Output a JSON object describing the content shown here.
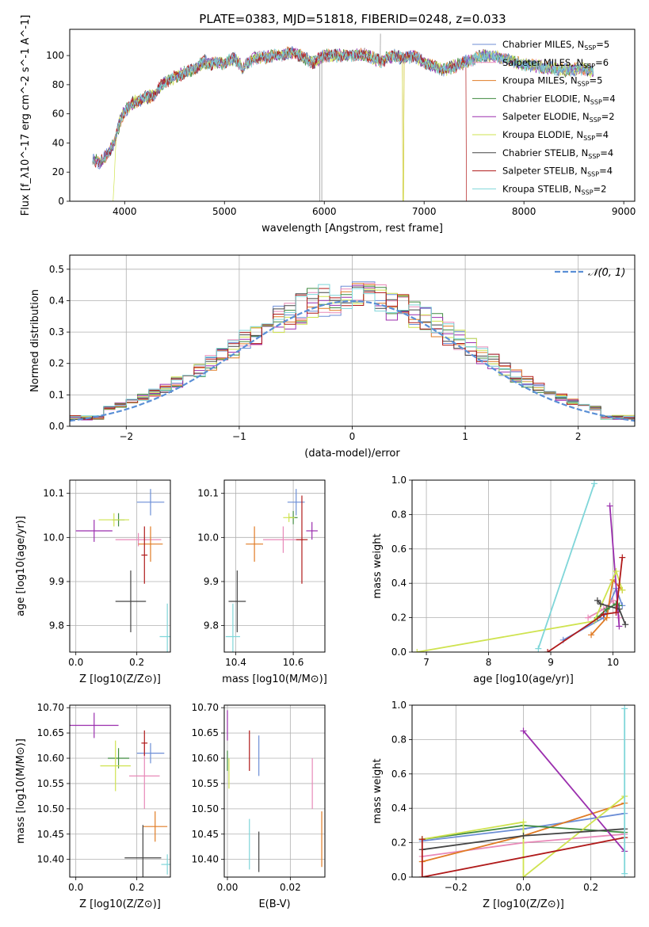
{
  "title": "PLATE=0383, MJD=51818, FIBERID=0248, z=0.033",
  "colors": {
    "Chabrier MILES": "#6c8ed6",
    "Salpeter MILES": "#e889b8",
    "Kroupa MILES": "#e07b24",
    "Chabrier ELODIE": "#3f8a3f",
    "Salpeter ELODIE": "#9b2fae",
    "Kroupa ELODIE": "#cfe34f",
    "Chabrier STELIB": "#444444",
    "Salpeter STELIB": "#b01a1a",
    "Kroupa STELIB": "#7fd6d9"
  },
  "chart_data": [
    {
      "type": "line",
      "title": "PLATE=0383, MJD=51818, FIBERID=0248, z=0.033",
      "xlabel": "wavelength [Angstrom, rest frame]",
      "ylabel": "Flux [f_λ10^-17 erg cm^-2 s^-1 A^-1]",
      "xlim": [
        3450,
        9110
      ],
      "ylim": [
        0,
        118
      ],
      "xticks": [
        4000,
        5000,
        6000,
        7000,
        8000,
        9000
      ],
      "yticks": [
        0,
        20,
        40,
        60,
        80,
        100
      ],
      "grid": false,
      "legend": "upper-right",
      "spectrum_x": [
        3680,
        3750,
        3820,
        3900,
        3950,
        4000,
        4100,
        4200,
        4300,
        4400,
        4500,
        4600,
        4700,
        4800,
        4861,
        4900,
        5000,
        5100,
        5175,
        5300,
        5500,
        5700,
        5890,
        6000,
        6200,
        6400,
        6563,
        6700,
        6800,
        6900,
        7000,
        7200,
        7400,
        7600,
        7800,
        8000,
        8200,
        8400,
        8600,
        8700
      ],
      "spectrum_y": [
        30,
        26,
        32,
        40,
        54,
        62,
        68,
        71,
        73,
        82,
        85,
        88,
        91,
        96,
        94,
        95,
        95,
        98,
        92,
        98,
        100,
        102,
        95,
        100,
        100,
        101,
        96,
        100,
        98,
        100,
        95,
        90,
        95,
        100,
        98,
        94,
        92,
        90,
        91,
        89
      ],
      "series": [
        {
          "name": "Chabrier MILES, N_SSP=5"
        },
        {
          "name": "Salpeter MILES, N_SSP=6"
        },
        {
          "name": "Kroupa MILES, N_SSP=5"
        },
        {
          "name": "Chabrier ELODIE, N_SSP=4"
        },
        {
          "name": "Salpeter ELODIE, N_SSP=2"
        },
        {
          "name": "Kroupa ELODIE, N_SSP=4"
        },
        {
          "name": "Chabrier STELIB, N_SSP=4"
        },
        {
          "name": "Salpeter STELIB, N_SSP=4"
        },
        {
          "name": "Kroupa STELIB, N_SSP=2"
        }
      ]
    },
    {
      "type": "histogram",
      "xlabel": "(data-model)/error",
      "ylabel": "Normed distribution",
      "xlim": [
        -2.5,
        2.5
      ],
      "ylim": [
        0,
        0.545
      ],
      "xticks": [
        -2,
        -1,
        0,
        1,
        2
      ],
      "yticks": [
        0.0,
        0.1,
        0.2,
        0.3,
        0.4,
        0.5
      ],
      "grid": true,
      "legend": "upper-right",
      "reference": {
        "name": "N(0,1)",
        "mean": 0,
        "sigma": 1
      },
      "bin_width": 0.1,
      "series_order": [
        "Chabrier MILES",
        "Salpeter MILES",
        "Kroupa MILES",
        "Chabrier ELODIE",
        "Salpeter ELODIE",
        "Kroupa ELODIE",
        "Chabrier STELIB",
        "Salpeter STELIB",
        "Kroupa STELIB"
      ]
    },
    {
      "type": "errorbar",
      "xlabel": "Z [log10(Z/Z⊙)]",
      "ylabel": "age  [log10(age/yr)]",
      "xlim": [
        -0.02,
        0.31
      ],
      "ylim": [
        9.74,
        10.13
      ],
      "xticks": [
        0.0,
        0.2
      ],
      "yticks": [
        9.8,
        9.9,
        10.0,
        10.1
      ],
      "grid": true,
      "points": [
        {
          "model": "Chabrier MILES",
          "x": 0.245,
          "y": 10.08,
          "xerr": 0.045,
          "yerr": 0.03
        },
        {
          "model": "Salpeter MILES",
          "x": 0.205,
          "y": 9.995,
          "xerr": 0.075,
          "yerr": 0.015
        },
        {
          "model": "Kroupa MILES",
          "x": 0.245,
          "y": 9.985,
          "xerr": 0.04,
          "yerr": 0.04
        },
        {
          "model": "Chabrier ELODIE",
          "x": 0.14,
          "y": 10.04,
          "xerr": 0.02,
          "yerr": 0.015
        },
        {
          "model": "Salpeter ELODIE",
          "x": 0.06,
          "y": 10.015,
          "xerr": 0.06,
          "yerr": 0.025
        },
        {
          "model": "Kroupa ELODIE",
          "x": 0.125,
          "y": 10.04,
          "xerr": 0.05,
          "yerr": 0.015
        },
        {
          "model": "Chabrier STELIB",
          "x": 0.18,
          "y": 9.855,
          "xerr": 0.05,
          "yerr": 0.07
        },
        {
          "model": "Salpeter STELIB",
          "x": 0.225,
          "y": 9.96,
          "xerr": 0.01,
          "yerr": 0.065
        },
        {
          "model": "Kroupa STELIB",
          "x": 0.3,
          "y": 9.775,
          "xerr": 0.025,
          "yerr": 0.075
        }
      ]
    },
    {
      "type": "errorbar",
      "xlabel": "mass [log10(M/M⊙)]",
      "ylabel": "",
      "xlim": [
        10.36,
        10.71
      ],
      "ylim": [
        9.74,
        10.13
      ],
      "xticks": [
        10.4,
        10.6
      ],
      "yticks": [
        9.8,
        9.9,
        10.0,
        10.1
      ],
      "grid": true,
      "points": [
        {
          "model": "Chabrier MILES",
          "x": 10.61,
          "y": 10.08,
          "xerr": 0.03,
          "yerr": 0.03
        },
        {
          "model": "Salpeter MILES",
          "x": 10.565,
          "y": 9.995,
          "xerr": 0.07,
          "yerr": 0.03
        },
        {
          "model": "Kroupa MILES",
          "x": 10.465,
          "y": 9.985,
          "xerr": 0.03,
          "yerr": 0.04
        },
        {
          "model": "Chabrier ELODIE",
          "x": 10.6,
          "y": 10.045,
          "xerr": 0.015,
          "yerr": 0.015
        },
        {
          "model": "Salpeter ELODIE",
          "x": 10.665,
          "y": 10.015,
          "xerr": 0.02,
          "yerr": 0.02
        },
        {
          "model": "Kroupa ELODIE",
          "x": 10.585,
          "y": 10.045,
          "xerr": 0.02,
          "yerr": 0.01
        },
        {
          "model": "Chabrier STELIB",
          "x": 10.405,
          "y": 9.855,
          "xerr": 0.03,
          "yerr": 0.07
        },
        {
          "model": "Salpeter STELIB",
          "x": 10.63,
          "y": 9.995,
          "xerr": 0.02,
          "yerr": 0.1
        },
        {
          "model": "Kroupa STELIB",
          "x": 10.39,
          "y": 9.775,
          "xerr": 0.025,
          "yerr": 0.075
        }
      ]
    },
    {
      "type": "line",
      "xlabel": "age  [log10(age/yr)]",
      "ylabel": "mass weight",
      "xlim": [
        6.77,
        10.35
      ],
      "ylim": [
        0,
        1.0
      ],
      "xticks": [
        7,
        8,
        9,
        10
      ],
      "yticks": [
        0.0,
        0.2,
        0.4,
        0.6,
        0.8,
        1.0
      ],
      "grid": true,
      "series": [
        {
          "model": "Chabrier MILES",
          "x": [
            9.2,
            9.85,
            10.05,
            10.15
          ],
          "y": [
            0.07,
            0.2,
            0.37,
            0.27
          ]
        },
        {
          "model": "Salpeter MILES",
          "x": [
            9.6,
            9.85,
            10.0,
            10.1
          ],
          "y": [
            0.2,
            0.25,
            0.3,
            0.2
          ]
        },
        {
          "model": "Kroupa MILES",
          "x": [
            9.65,
            9.9,
            10.0,
            10.15
          ],
          "y": [
            0.1,
            0.2,
            0.42,
            0.36
          ]
        },
        {
          "model": "Chabrier ELODIE",
          "x": [
            9.75,
            9.9,
            10.05,
            10.1
          ],
          "y": [
            0.2,
            0.25,
            0.28,
            0.27
          ]
        },
        {
          "model": "Salpeter ELODIE",
          "x": [
            9.95,
            10.1
          ],
          "y": [
            0.85,
            0.15
          ]
        },
        {
          "model": "Kroupa ELODIE",
          "x": [
            6.85,
            9.7,
            10.05,
            10.15
          ],
          "y": [
            0.0,
            0.18,
            0.47,
            0.36
          ]
        },
        {
          "model": "Chabrier STELIB",
          "x": [
            9.75,
            9.8,
            10.1,
            10.2
          ],
          "y": [
            0.3,
            0.28,
            0.25,
            0.16
          ]
        },
        {
          "model": "Salpeter STELIB",
          "x": [
            8.95,
            9.85,
            10.05,
            10.15
          ],
          "y": [
            0.0,
            0.22,
            0.23,
            0.55
          ]
        },
        {
          "model": "Kroupa STELIB",
          "x": [
            8.8,
            9.7
          ],
          "y": [
            0.02,
            0.98
          ]
        }
      ]
    },
    {
      "type": "errorbar",
      "xlabel": "Z [log10(Z/Z⊙)]",
      "ylabel": "mass [log10(M/M⊙)]",
      "xlim": [
        -0.02,
        0.31
      ],
      "ylim": [
        10.365,
        10.705
      ],
      "xticks": [
        0.0,
        0.2
      ],
      "yticks": [
        10.4,
        10.45,
        10.5,
        10.55,
        10.6,
        10.65,
        10.7
      ],
      "grid": true,
      "points": [
        {
          "model": "Chabrier MILES",
          "x": 0.245,
          "y": 10.61,
          "xerr": 0.045,
          "yerr": 0.02
        },
        {
          "model": "Salpeter MILES",
          "x": 0.225,
          "y": 10.565,
          "xerr": 0.05,
          "yerr": 0.065
        },
        {
          "model": "Kroupa MILES",
          "x": 0.26,
          "y": 10.465,
          "xerr": 0.04,
          "yerr": 0.03
        },
        {
          "model": "Chabrier ELODIE",
          "x": 0.14,
          "y": 10.6,
          "xerr": 0.035,
          "yerr": 0.02
        },
        {
          "model": "Salpeter ELODIE",
          "x": 0.06,
          "y": 10.665,
          "xerr": 0.08,
          "yerr": 0.025
        },
        {
          "model": "Kroupa ELODIE",
          "x": 0.13,
          "y": 10.585,
          "xerr": 0.05,
          "yerr": 0.05
        },
        {
          "model": "Chabrier STELIB",
          "x": 0.22,
          "y": 10.403,
          "xerr": 0.06,
          "yerr": 0.065
        },
        {
          "model": "Salpeter STELIB",
          "x": 0.225,
          "y": 10.63,
          "xerr": 0.01,
          "yerr": 0.025
        },
        {
          "model": "Kroupa STELIB",
          "x": 0.3,
          "y": 10.39,
          "xerr": 0.02,
          "yerr": 0.02
        }
      ]
    },
    {
      "type": "errorbar",
      "xlabel": "E(B-V)",
      "ylabel": "",
      "xlim": [
        -0.001,
        0.031
      ],
      "ylim": [
        10.365,
        10.705
      ],
      "xticks": [
        0.0,
        0.02
      ],
      "yticks": [
        10.4,
        10.45,
        10.5,
        10.55,
        10.6,
        10.65,
        10.7
      ],
      "grid": true,
      "points": [
        {
          "model": "Chabrier MILES",
          "x": 0.01,
          "y": 10.605,
          "xerr": 0,
          "yerr": 0.04
        },
        {
          "model": "Salpeter MILES",
          "x": 0.027,
          "y": 10.55,
          "xerr": 0,
          "yerr": 0.05
        },
        {
          "model": "Kroupa MILES",
          "x": 0.03,
          "y": 10.44,
          "xerr": 0,
          "yerr": 0.055
        },
        {
          "model": "Chabrier ELODIE",
          "x": 0.0,
          "y": 10.595,
          "xerr": 0,
          "yerr": 0.02
        },
        {
          "model": "Salpeter ELODIE",
          "x": 0.0,
          "y": 10.665,
          "xerr": 0,
          "yerr": 0.03
        },
        {
          "model": "Kroupa ELODIE",
          "x": 0.0005,
          "y": 10.57,
          "xerr": 0,
          "yerr": 0.03
        },
        {
          "model": "Chabrier STELIB",
          "x": 0.01,
          "y": 10.415,
          "xerr": 0,
          "yerr": 0.04
        },
        {
          "model": "Salpeter STELIB",
          "x": 0.007,
          "y": 10.615,
          "xerr": 0,
          "yerr": 0.04
        },
        {
          "model": "Kroupa STELIB",
          "x": 0.007,
          "y": 10.43,
          "xerr": 0,
          "yerr": 0.05
        }
      ]
    },
    {
      "type": "line",
      "xlabel": "Z [log10(Z/Z⊙)]",
      "ylabel": "mass weight",
      "xlim": [
        -0.33,
        0.33
      ],
      "ylim": [
        0,
        1.0
      ],
      "xticks": [
        -0.2,
        0.0,
        0.2
      ],
      "yticks": [
        0.0,
        0.2,
        0.4,
        0.6,
        0.8,
        1.0
      ],
      "grid": true,
      "series": [
        {
          "model": "Chabrier MILES",
          "x": [
            -0.3,
            0.0,
            0.3
          ],
          "y": [
            0.21,
            0.28,
            0.37
          ]
        },
        {
          "model": "Salpeter MILES",
          "x": [
            -0.3,
            0.0,
            0.3
          ],
          "y": [
            0.12,
            0.2,
            0.25
          ]
        },
        {
          "model": "Kroupa MILES",
          "x": [
            -0.3,
            0.0,
            0.3
          ],
          "y": [
            0.09,
            0.24,
            0.43
          ]
        },
        {
          "model": "Chabrier ELODIE",
          "x": [
            -0.3,
            0.0,
            0.3
          ],
          "y": [
            0.22,
            0.3,
            0.26
          ]
        },
        {
          "model": "Salpeter ELODIE",
          "x": [
            0.0,
            0.3
          ],
          "y": [
            0.85,
            0.15
          ]
        },
        {
          "model": "Kroupa ELODIE",
          "x": [
            -0.3,
            0.0,
            0.0,
            0.3
          ],
          "y": [
            0.22,
            0.32,
            0.0,
            0.47
          ]
        },
        {
          "model": "Chabrier STELIB",
          "x": [
            -0.3,
            0.0,
            0.3
          ],
          "y": [
            0.16,
            0.24,
            0.28
          ]
        },
        {
          "model": "Salpeter STELIB",
          "x": [
            -0.3,
            -0.3,
            0.3
          ],
          "y": [
            0.22,
            0.0,
            0.23
          ]
        },
        {
          "model": "Kroupa STELIB",
          "x": [
            0.3,
            0.3
          ],
          "y": [
            0.02,
            0.98
          ]
        }
      ]
    }
  ]
}
